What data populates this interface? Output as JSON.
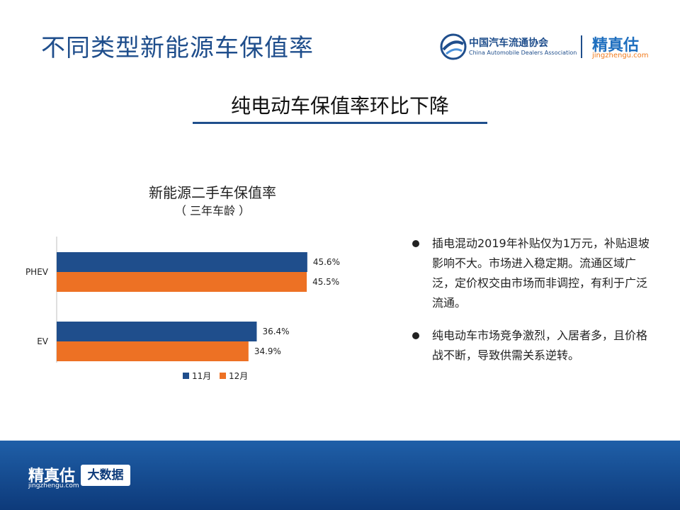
{
  "page": {
    "title": "不同类型新能源车保值率"
  },
  "header": {
    "cada_name_cn": "中国汽车流通协会",
    "cada_name_en": "China Automobile Dealers Association",
    "brand_cn": "精真估",
    "brand_en": "jingzhengu.com"
  },
  "subtitle": "纯电动车保值率环比下降",
  "chart_data": {
    "type": "bar",
    "orientation": "horizontal",
    "title": "新能源二手车保值率",
    "subtitle": "（ 三年车龄 ）",
    "categories": [
      "PHEV",
      "EV"
    ],
    "series": [
      {
        "name": "11月",
        "values": [
          45.6,
          36.4
        ],
        "labels": [
          "45.6%",
          "36.4%"
        ],
        "color": "#1f4e8c"
      },
      {
        "name": "12月",
        "values": [
          45.5,
          34.9
        ],
        "labels": [
          "45.5%",
          "34.9%"
        ],
        "color": "#ed7124"
      }
    ],
    "xlim": [
      0,
      50
    ],
    "grid": false,
    "legend": "bottom"
  },
  "bullets": [
    "插电混动2019年补贴仅为1万元，补贴退坡影响不大。市场进入稳定期。流通区域广泛，定价权交由市场而非调控，有利于广泛流通。",
    "纯电动车市场竞争激烈，入居者多，且价格战不断，导致供需关系逆转。"
  ],
  "footer": {
    "brand_cn": "精真估",
    "brand_en": "jingzhengu.com",
    "badge": "大数据"
  }
}
